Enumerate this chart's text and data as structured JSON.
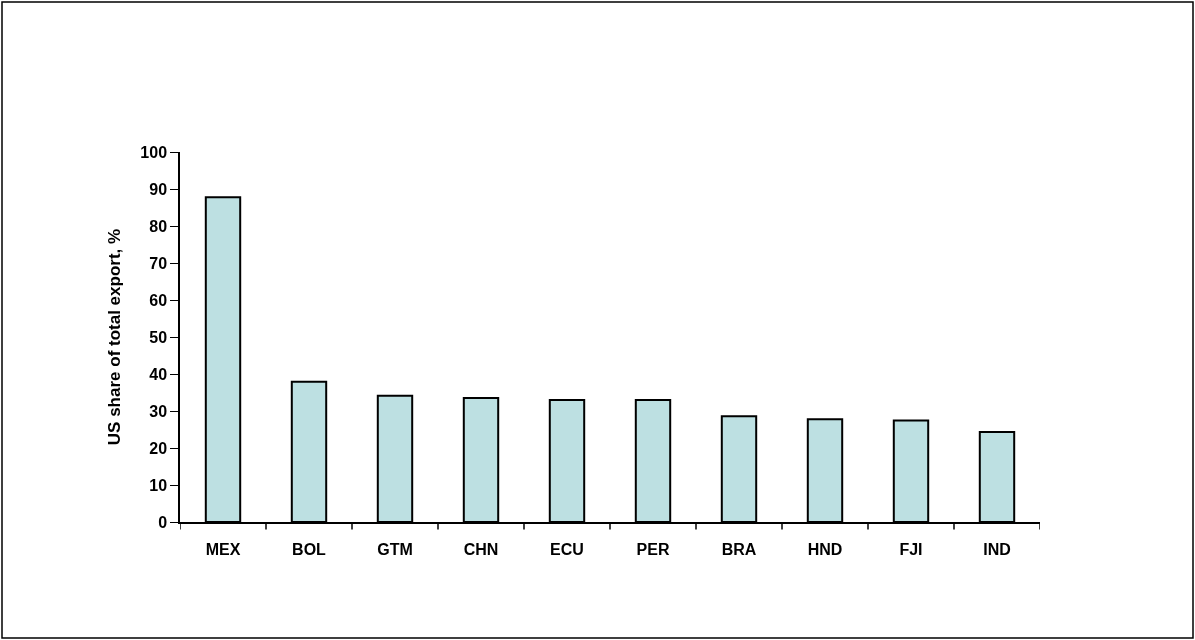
{
  "chart_data": {
    "type": "bar",
    "ylabel": "US share of total export, %",
    "categories": [
      "MEX",
      "BOL",
      "GTM",
      "CHN",
      "ECU",
      "PER",
      "BRA",
      "HND",
      "FJI",
      "IND"
    ],
    "values": [
      87.8,
      37.9,
      34.1,
      33.5,
      33.0,
      33.0,
      28.6,
      27.8,
      27.4,
      24.3
    ],
    "color": "#bde0e2",
    "ylim": [
      0,
      100
    ],
    "yticks": [
      0,
      10,
      20,
      30,
      40,
      50,
      60,
      70,
      80,
      90,
      100
    ],
    "legend": false
  }
}
